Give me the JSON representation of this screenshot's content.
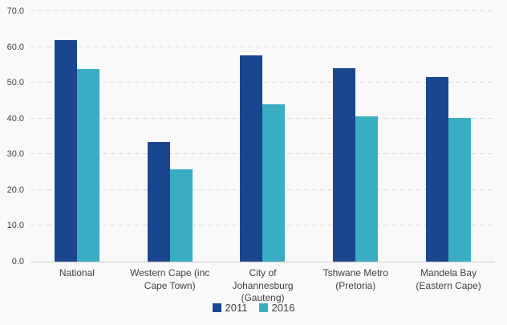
{
  "chart_data": {
    "type": "bar",
    "categories": [
      "National",
      "Western Cape (inc Cape Town)",
      "City of Johannesburg (Gauteng)",
      "Tshwane Metro (Pretoria)",
      "Mandela Bay (Eastern Cape)"
    ],
    "series": [
      {
        "name": "2011",
        "color": "#1a4690",
        "values": [
          62.0,
          33.4,
          57.6,
          54.0,
          51.5
        ]
      },
      {
        "name": "2016",
        "color": "#39aec3",
        "values": [
          53.8,
          25.9,
          44.0,
          40.7,
          40.1
        ]
      }
    ],
    "title": "",
    "xlabel": "",
    "ylabel": "",
    "ylim": [
      0,
      70
    ],
    "ytick_step": 10,
    "ytick_decimals": 1,
    "grid": true,
    "gridline_style": "dashed",
    "legend_position": "bottom"
  },
  "colors": {
    "background": "#f9f9f9",
    "gridline": "#d8d8d8",
    "axis_line": "#cccccc",
    "tick_label": "#424242",
    "legend_text": "#3f3f3f"
  }
}
